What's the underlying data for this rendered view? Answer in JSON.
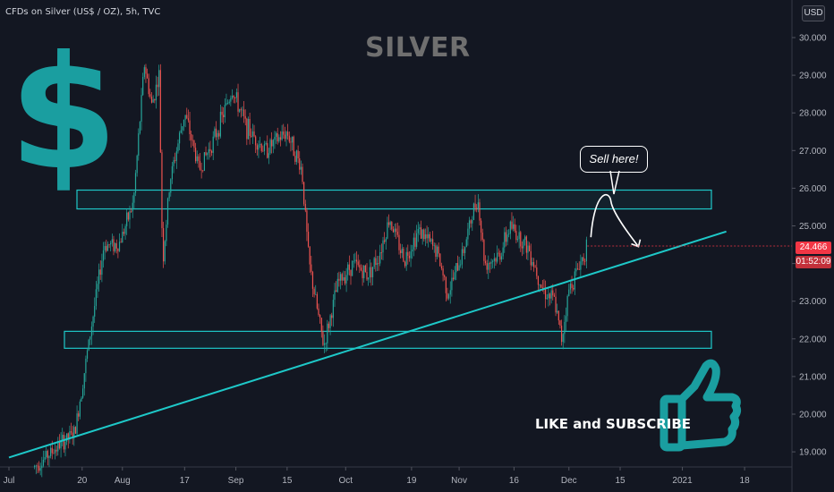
{
  "header": {
    "symbol": "CFDs on Silver (US$ / OZ), 5h, TVC",
    "currency": "USD"
  },
  "title": "SILVER",
  "dollar_sign": "$",
  "callout": "Sell here!",
  "cta": "LIKE and SUBSCRIBE",
  "last_price": "24.466",
  "countdown": "01:52:09",
  "colors": {
    "background": "#131722",
    "up": "#26a69a",
    "down": "#ef5350",
    "accent": "#1ec8c8",
    "price_tag": "#f23645"
  },
  "chart_data": {
    "type": "candlestick",
    "title": "SILVER",
    "ylim": [
      18.5,
      30.5
    ],
    "y_ticks": [
      "30.000",
      "29.000",
      "28.000",
      "27.000",
      "26.000",
      "25.000",
      "24.000",
      "23.000",
      "22.000",
      "21.000",
      "20.000",
      "19.000"
    ],
    "x_ticks": [
      "Jul",
      "20",
      "Aug",
      "17",
      "Sep",
      "15",
      "Oct",
      "19",
      "Nov",
      "16",
      "Dec",
      "15",
      "2021",
      "18"
    ],
    "x_tick_days": [
      0,
      20,
      31,
      48,
      62,
      76,
      92,
      110,
      123,
      138,
      153,
      167,
      184,
      201
    ],
    "price_path": [
      {
        "day": 7,
        "price": 18.6
      },
      {
        "day": 14,
        "price": 19.2
      },
      {
        "day": 18,
        "price": 19.5
      },
      {
        "day": 22,
        "price": 22.0
      },
      {
        "day": 26,
        "price": 24.5
      },
      {
        "day": 30,
        "price": 24.5
      },
      {
        "day": 34,
        "price": 25.6
      },
      {
        "day": 37,
        "price": 29.3
      },
      {
        "day": 39,
        "price": 28.2
      },
      {
        "day": 41,
        "price": 29.0
      },
      {
        "day": 42,
        "price": 24.0
      },
      {
        "day": 44,
        "price": 26.2
      },
      {
        "day": 48,
        "price": 28.0
      },
      {
        "day": 52,
        "price": 26.5
      },
      {
        "day": 56,
        "price": 27.3
      },
      {
        "day": 61,
        "price": 28.6
      },
      {
        "day": 65,
        "price": 27.6
      },
      {
        "day": 70,
        "price": 27.0
      },
      {
        "day": 76,
        "price": 27.5
      },
      {
        "day": 80,
        "price": 26.5
      },
      {
        "day": 82,
        "price": 24.0
      },
      {
        "day": 86,
        "price": 21.8
      },
      {
        "day": 90,
        "price": 23.5
      },
      {
        "day": 94,
        "price": 24.0
      },
      {
        "day": 98,
        "price": 23.7
      },
      {
        "day": 101,
        "price": 24.2
      },
      {
        "day": 104,
        "price": 25.2
      },
      {
        "day": 108,
        "price": 24.1
      },
      {
        "day": 112,
        "price": 24.9
      },
      {
        "day": 117,
        "price": 24.3
      },
      {
        "day": 120,
        "price": 23.2
      },
      {
        "day": 124,
        "price": 24.3
      },
      {
        "day": 128,
        "price": 25.8
      },
      {
        "day": 130,
        "price": 24.0
      },
      {
        "day": 134,
        "price": 24.2
      },
      {
        "day": 137,
        "price": 25.0
      },
      {
        "day": 142,
        "price": 24.4
      },
      {
        "day": 146,
        "price": 23.3
      },
      {
        "day": 149,
        "price": 23.0
      },
      {
        "day": 151,
        "price": 22.0
      },
      {
        "day": 153,
        "price": 23.3
      },
      {
        "day": 156,
        "price": 24.0
      },
      {
        "day": 158,
        "price": 24.466
      }
    ],
    "resistance_zone": [
      25.45,
      25.95
    ],
    "support_zone": [
      21.75,
      22.2
    ],
    "trendline": [
      {
        "day": 0,
        "price": 18.85
      },
      {
        "day": 196,
        "price": 24.85
      }
    ],
    "projection": [
      {
        "day": 159,
        "price": 24.7
      },
      {
        "day": 164,
        "price": 25.65
      },
      {
        "day": 172,
        "price": 24.45
      }
    ],
    "last_price": 24.466
  }
}
